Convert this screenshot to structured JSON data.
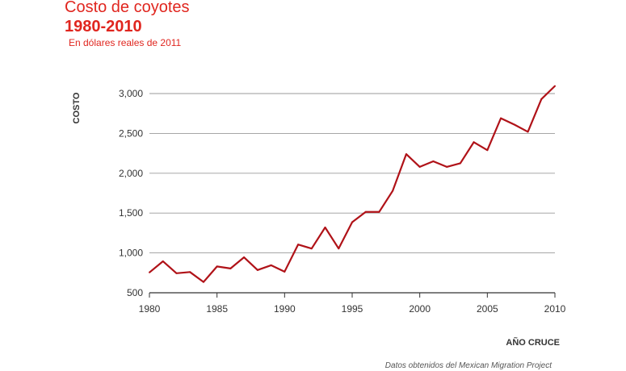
{
  "header": {
    "title": "Costo de coyotes",
    "subtitle": "1980-2010",
    "note": "En dólares reales de 2011"
  },
  "footer": {
    "source": "Datos obtenidos del Mexican Migration Project"
  },
  "colors": {
    "accent": "#e0261f",
    "line": "#b01218",
    "grid": "#9a9a9a"
  },
  "chart_data": {
    "type": "line",
    "ylabel": "COSTO",
    "xlabel": "AÑO CRUCE",
    "xlim": [
      1980,
      2010
    ],
    "ylim": [
      500,
      3000
    ],
    "x_ticks": [
      1980,
      1985,
      1990,
      1995,
      2000,
      2005,
      2010
    ],
    "y_ticks": [
      500,
      1000,
      1500,
      2000,
      2500,
      3000
    ],
    "y_tick_labels": [
      "500",
      "1,000",
      "1,500",
      "2,000",
      "2,500",
      "3,000"
    ],
    "grid": "horizontal",
    "series": [
      {
        "x": [
          1980,
          1981,
          1982,
          1983,
          1984,
          1985,
          1986,
          1987,
          1988,
          1989,
          1990,
          1991,
          1992,
          1993,
          1994,
          1995,
          1996,
          1997,
          1998,
          1999,
          2000,
          2001,
          2002,
          2003,
          2004,
          2005,
          2006,
          2007,
          2008,
          2009,
          2010
        ],
        "values": [
          755,
          895,
          745,
          760,
          635,
          830,
          805,
          945,
          785,
          845,
          765,
          1105,
          1055,
          1320,
          1055,
          1385,
          1515,
          1515,
          1780,
          2240,
          2080,
          2150,
          2080,
          2125,
          2390,
          2290,
          2690,
          2610,
          2520,
          2930,
          3095
        ]
      }
    ]
  }
}
